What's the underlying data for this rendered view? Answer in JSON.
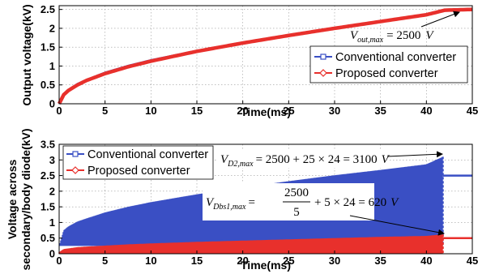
{
  "chart_data": [
    {
      "type": "line",
      "xlabel": "Time(ms)",
      "ylabel": "Output voltage(kV)",
      "xlim": [
        0,
        45
      ],
      "ylim": [
        0,
        2.6
      ],
      "xticks": [
        "0",
        "5",
        "10",
        "15",
        "20",
        "25",
        "30",
        "35",
        "40",
        "45"
      ],
      "yticks": [
        "0",
        "0.5",
        "1",
        "1.5",
        "2",
        "2.5"
      ],
      "grid": true,
      "legend_position": "center-right",
      "series": [
        {
          "name": "Conventional converter",
          "color": "#3a4fc4",
          "marker": "square",
          "x": [
            0,
            0.5,
            1,
            2,
            3,
            5,
            7.5,
            10,
            15,
            20,
            25,
            30,
            35,
            40,
            42,
            45
          ],
          "y": [
            0,
            0.25,
            0.36,
            0.52,
            0.63,
            0.82,
            1.0,
            1.15,
            1.4,
            1.62,
            1.82,
            2.01,
            2.18,
            2.36,
            2.48,
            2.5
          ]
        },
        {
          "name": "Proposed converter",
          "color": "#e8302c",
          "marker": "diamond",
          "x": [
            0,
            0.5,
            1,
            2,
            3,
            5,
            7.5,
            10,
            15,
            20,
            25,
            30,
            35,
            40,
            42,
            45
          ],
          "y": [
            0,
            0.24,
            0.35,
            0.5,
            0.62,
            0.8,
            0.98,
            1.13,
            1.39,
            1.61,
            1.81,
            2.0,
            2.18,
            2.36,
            2.48,
            2.5
          ]
        }
      ],
      "annotations": [
        {
          "symbol": "V",
          "subscript": "out,max",
          "text": "= 2500",
          "unit": "V"
        }
      ]
    },
    {
      "type": "line",
      "xlabel": "Time(ms)",
      "ylabel_lines": [
        "Voltage across",
        "secondary/body diode(kV)"
      ],
      "xlim": [
        0,
        45
      ],
      "ylim": [
        0,
        3.5
      ],
      "xticks": [
        "0",
        "5",
        "10",
        "15",
        "20",
        "25",
        "30",
        "35",
        "40",
        "45"
      ],
      "yticks": [
        "0",
        "0.5",
        "1",
        "1.5",
        "2",
        "2.5",
        "3",
        "3.5"
      ],
      "grid": true,
      "legend_position": "top-left",
      "series": [
        {
          "name": "Conventional converter",
          "color": "#3a4fc4",
          "marker": "square",
          "envelope_x": [
            0,
            0.5,
            1,
            2,
            3,
            5,
            7.5,
            10,
            15,
            20,
            25,
            30,
            35,
            40,
            41.8
          ],
          "envelope_max": [
            0.25,
            0.75,
            0.87,
            1.03,
            1.13,
            1.32,
            1.5,
            1.65,
            1.9,
            2.12,
            2.32,
            2.51,
            2.68,
            2.86,
            3.1
          ],
          "floor": 0.25,
          "steady_after_ms": 41.8,
          "steady_value": 2.5
        },
        {
          "name": "Proposed converter",
          "color": "#e8302c",
          "marker": "diamond",
          "envelope_x": [
            0,
            0.5,
            1,
            2,
            3,
            5,
            7.5,
            10,
            15,
            20,
            25,
            30,
            35,
            40,
            41.8
          ],
          "envelope_max": [
            0.05,
            0.15,
            0.17,
            0.21,
            0.23,
            0.26,
            0.3,
            0.33,
            0.38,
            0.42,
            0.46,
            0.5,
            0.54,
            0.57,
            0.62
          ],
          "floor": 0.0,
          "steady_after_ms": 41.8,
          "steady_value": 0.5
        }
      ],
      "annotations": [
        {
          "symbol": "V",
          "subscript": "D2,max",
          "text": "= 2500 + 25 × 24 = 3100",
          "unit": "V"
        },
        {
          "symbol": "V",
          "subscript": "Dbs1,max",
          "text_eq": "=",
          "numerator": "2500",
          "denominator": "5",
          "text_rest": "+ 5 × 24 = 620",
          "unit": "V"
        }
      ]
    }
  ]
}
